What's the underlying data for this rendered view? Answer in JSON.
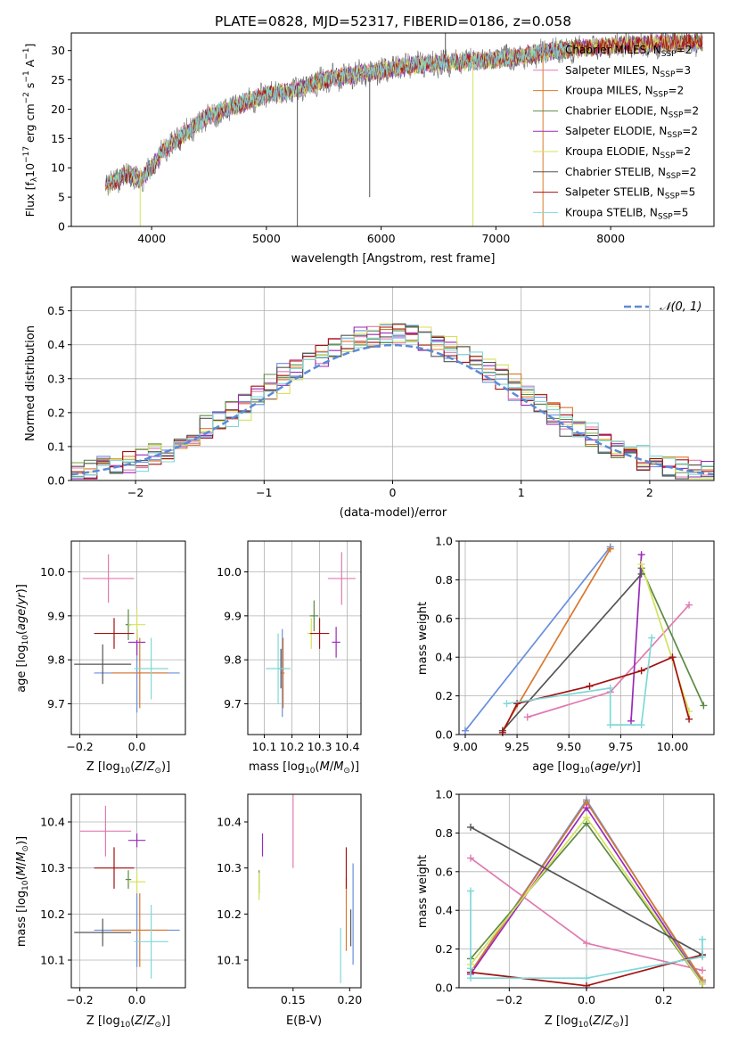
{
  "title": "PLATE=0828, MJD=52317, FIBERID=0186, z=0.058",
  "colors": {
    "Chabrier MILES": "#6a8fdc",
    "Salpeter MILES": "#e07ab0",
    "Kroupa MILES": "#d9782c",
    "Chabrier ELODIE": "#5c8a44",
    "Salpeter ELODIE": "#9a2ab8",
    "Kroupa ELODIE": "#d4e25a",
    "Chabrier STELIB": "#555555",
    "Salpeter STELIB": "#a31212",
    "Kroupa STELIB": "#7fd8d8",
    "normal": "#5b8bd6"
  },
  "chart_data": [
    {
      "id": "spectrum",
      "type": "line",
      "xlabel": "wavelength [Angstrom, rest frame]",
      "ylabel": "Flux [f_λ10^-17 erg cm^-2 s^-1 A^-1]",
      "xlim": [
        3300,
        8900
      ],
      "ylim": [
        0,
        33
      ],
      "xticks": [
        4000,
        5000,
        6000,
        7000,
        8000
      ],
      "yticks": [
        0,
        5,
        10,
        15,
        20,
        25,
        30
      ],
      "grid": false,
      "legend_position": "lower-right",
      "data_range": [
        3600,
        8800
      ],
      "continuum": {
        "x": [
          3600,
          3800,
          3900,
          4000,
          4100,
          4300,
          4500,
          4800,
          5000,
          5200,
          5500,
          5800,
          6000,
          6300,
          6600,
          7000,
          7200,
          7500,
          7800,
          8200,
          8600,
          8800
        ],
        "y": [
          7,
          9,
          8,
          10,
          13,
          16,
          19,
          21,
          22.5,
          23,
          25,
          26,
          26.5,
          27.5,
          28,
          28.5,
          29,
          30,
          30.5,
          31,
          31.3,
          31.5
        ]
      },
      "series": [
        {
          "name": "Chabrier MILES, N_SSP=2",
          "label": "Chabrier MILES, N",
          "sub": "SSP",
          "n": "=2"
        },
        {
          "name": "Salpeter MILES, N_SSP=3",
          "label": "Salpeter MILES, N",
          "sub": "SSP",
          "n": "=3"
        },
        {
          "name": "Kroupa MILES, N_SSP=2",
          "label": "Kroupa MILES, N",
          "sub": "SSP",
          "n": "=2"
        },
        {
          "name": "Chabrier ELODIE, N_SSP=2",
          "label": "Chabrier ELODIE, N",
          "sub": "SSP",
          "n": "=2"
        },
        {
          "name": "Salpeter ELODIE, N_SSP=2",
          "label": "Salpeter ELODIE, N",
          "sub": "SSP",
          "n": "=2"
        },
        {
          "name": "Kroupa ELODIE, N_SSP=2",
          "label": "Kroupa ELODIE, N",
          "sub": "SSP",
          "n": "=2"
        },
        {
          "name": "Chabrier STELIB, N_SSP=2",
          "label": "Chabrier STELIB, N",
          "sub": "SSP",
          "n": "=2"
        },
        {
          "name": "Salpeter STELIB, N_SSP=5",
          "label": "Salpeter STELIB, N",
          "sub": "SSP",
          "n": "=5"
        },
        {
          "name": "Kroupa STELIB, N_SSP=5",
          "label": "Kroupa STELIB, N",
          "sub": "SSP",
          "n": "=5"
        }
      ],
      "spikes": [
        {
          "x": 3900,
          "y0": 0,
          "y1": 10,
          "series": 5
        },
        {
          "x": 5270,
          "y0": 0,
          "y1": 23,
          "series": 6
        },
        {
          "x": 5900,
          "y0": 5,
          "y1": 26,
          "series": 6
        },
        {
          "x": 6560,
          "y0": 28,
          "y1": 33,
          "series": 6
        },
        {
          "x": 6800,
          "y0": 0,
          "y1": 28,
          "series": 5
        },
        {
          "x": 7410,
          "y0": 0,
          "y1": 30,
          "series": 2
        }
      ]
    },
    {
      "id": "residuals",
      "type": "line",
      "xlabel": "(data-model)/error",
      "ylabel": "Normed distribution",
      "xlim": [
        -2.5,
        2.5
      ],
      "ylim": [
        0,
        0.57
      ],
      "xticks": [
        -2,
        -1,
        0,
        1,
        2
      ],
      "xtick_labels": [
        "−2",
        "−1",
        "0",
        "1",
        "2"
      ],
      "yticks": [
        0.0,
        0.1,
        0.2,
        0.3,
        0.4,
        0.5
      ],
      "ytick_labels": [
        "0.0",
        "0.1",
        "0.2",
        "0.3",
        "0.4",
        "0.5"
      ],
      "grid": true,
      "legend_position": "top-right",
      "normal_label": "𝒩(0, 1)",
      "bin_width": 0.1
    },
    {
      "id": "age-vs-Z",
      "type": "scatter",
      "xlabel": "Z [log10(Z/Z⊙)]",
      "ylabel": "age [log10(age/yr)]",
      "xlim": [
        -0.23,
        0.17
      ],
      "ylim": [
        9.63,
        10.07
      ],
      "xticks": [
        -0.2,
        0.0
      ],
      "xtick_labels": [
        "−0.2",
        "0.0"
      ],
      "yticks": [
        9.7,
        9.8,
        9.9,
        10.0
      ],
      "ytick_labels": [
        "9.7",
        "9.8",
        "9.9",
        "10.0"
      ],
      "grid": true,
      "points": [
        {
          "series": 0,
          "x": 0.0,
          "y": 9.77,
          "xerr": 0.15,
          "yerr": 0.09
        },
        {
          "series": 1,
          "x": -0.1,
          "y": 9.985,
          "xerr": 0.09,
          "yerr": 0.055
        },
        {
          "series": 2,
          "x": 0.01,
          "y": 9.77,
          "xerr": 0.1,
          "yerr": 0.08
        },
        {
          "series": 3,
          "x": -0.03,
          "y": 9.88,
          "xerr": 0.01,
          "yerr": 0.035
        },
        {
          "series": 4,
          "x": 0.0,
          "y": 9.84,
          "xerr": 0.03,
          "yerr": 0.03
        },
        {
          "series": 5,
          "x": 0.0,
          "y": 9.88,
          "xerr": 0.03,
          "yerr": 0.035
        },
        {
          "series": 6,
          "x": -0.12,
          "y": 9.79,
          "xerr": 0.1,
          "yerr": 0.045
        },
        {
          "series": 7,
          "x": -0.08,
          "y": 9.86,
          "xerr": 0.07,
          "yerr": 0.035
        },
        {
          "series": 8,
          "x": 0.05,
          "y": 9.78,
          "xerr": 0.06,
          "yerr": 0.07
        }
      ]
    },
    {
      "id": "age-vs-mass",
      "type": "scatter",
      "xlabel": "mass [log10(M/M⊙)]",
      "ylabel": "",
      "xlim": [
        10.04,
        10.45
      ],
      "ylim": [
        9.63,
        10.07
      ],
      "xticks": [
        10.1,
        10.2,
        10.3,
        10.4
      ],
      "xtick_labels": [
        "10.1",
        "10.2",
        "10.3",
        "10.4"
      ],
      "yticks": [
        9.7,
        9.8,
        9.9,
        10.0
      ],
      "ytick_labels": [
        "9.7",
        "9.8",
        "9.9",
        "10.0"
      ],
      "grid": true,
      "points": [
        {
          "series": 0,
          "x": 10.165,
          "y": 9.77,
          "xerr": 0.005,
          "yerr": 0.1
        },
        {
          "series": 1,
          "x": 10.38,
          "y": 9.985,
          "xerr": 0.05,
          "yerr": 0.06
        },
        {
          "series": 2,
          "x": 10.168,
          "y": 9.77,
          "xerr": 0.005,
          "yerr": 0.08
        },
        {
          "series": 3,
          "x": 10.28,
          "y": 9.9,
          "xerr": 0.015,
          "yerr": 0.035
        },
        {
          "series": 4,
          "x": 10.36,
          "y": 9.84,
          "xerr": 0.015,
          "yerr": 0.035
        },
        {
          "series": 5,
          "x": 10.27,
          "y": 9.86,
          "xerr": 0.015,
          "yerr": 0.035
        },
        {
          "series": 6,
          "x": 10.16,
          "y": 9.78,
          "xerr": 0.01,
          "yerr": 0.045
        },
        {
          "series": 7,
          "x": 10.3,
          "y": 9.86,
          "xerr": 0.035,
          "yerr": 0.035
        },
        {
          "series": 8,
          "x": 10.15,
          "y": 9.78,
          "xerr": 0.045,
          "yerr": 0.08
        }
      ]
    },
    {
      "id": "weight-vs-age",
      "type": "line",
      "xlabel": "age [log10(age/yr)]",
      "ylabel": "mass weight",
      "xlim": [
        8.97,
        10.2
      ],
      "ylim": [
        0,
        1
      ],
      "xticks": [
        9.0,
        9.25,
        9.5,
        9.75,
        10.0
      ],
      "xtick_labels": [
        "9.00",
        "9.25",
        "9.50",
        "9.75",
        "10.00"
      ],
      "yticks": [
        0,
        0.2,
        0.4,
        0.6,
        0.8,
        1.0
      ],
      "ytick_labels": [
        "0.0",
        "0.2",
        "0.4",
        "0.6",
        "0.8",
        "1.0"
      ],
      "grid": true,
      "series": [
        {
          "series": 0,
          "x": [
            9.0,
            9.7
          ],
          "y": [
            0.02,
            0.97
          ]
        },
        {
          "series": 1,
          "x": [
            9.3,
            9.7,
            10.08
          ],
          "y": [
            0.09,
            0.22,
            0.67
          ]
        },
        {
          "series": 2,
          "x": [
            9.18,
            9.7
          ],
          "y": [
            0.02,
            0.96
          ]
        },
        {
          "series": 3,
          "x": [
            9.85,
            10.15
          ],
          "y": [
            0.86,
            0.15
          ]
        },
        {
          "series": 4,
          "x": [
            9.8,
            9.85
          ],
          "y": [
            0.07,
            0.93
          ]
        },
        {
          "series": 5,
          "x": [
            9.85,
            10.08
          ],
          "y": [
            0.88,
            0.12
          ]
        },
        {
          "series": 6,
          "x": [
            9.18,
            9.85
          ],
          "y": [
            0.02,
            0.83
          ]
        },
        {
          "series": 7,
          "x": [
            9.18,
            9.25,
            9.6,
            9.85,
            10.0,
            10.08
          ],
          "y": [
            0.01,
            0.16,
            0.25,
            0.33,
            0.4,
            0.08
          ]
        },
        {
          "series": 8,
          "x": [
            9.2,
            9.7,
            9.7,
            9.85,
            9.9
          ],
          "y": [
            0.16,
            0.24,
            0.05,
            0.05,
            0.5
          ]
        }
      ]
    },
    {
      "id": "mass-vs-Z",
      "type": "scatter",
      "xlabel": "Z [log10(Z/Z⊙)]",
      "ylabel": "mass [log10(M/M⊙)]",
      "xlim": [
        -0.23,
        0.17
      ],
      "ylim": [
        10.04,
        10.46
      ],
      "xticks": [
        -0.2,
        0.0
      ],
      "xtick_labels": [
        "−0.2",
        "0.0"
      ],
      "yticks": [
        10.1,
        10.2,
        10.3,
        10.4
      ],
      "ytick_labels": [
        "10.1",
        "10.2",
        "10.3",
        "10.4"
      ],
      "grid": true,
      "points": [
        {
          "series": 0,
          "x": 0.0,
          "y": 10.165,
          "xerr": 0.15,
          "yerr": 0.08
        },
        {
          "series": 1,
          "x": -0.11,
          "y": 10.38,
          "xerr": 0.09,
          "yerr": 0.055
        },
        {
          "series": 2,
          "x": 0.01,
          "y": 10.165,
          "xerr": 0.1,
          "yerr": 0.08
        },
        {
          "series": 3,
          "x": -0.03,
          "y": 10.275,
          "xerr": 0.01,
          "yerr": 0.02
        },
        {
          "series": 4,
          "x": 0.0,
          "y": 10.36,
          "xerr": 0.03,
          "yerr": 0.015
        },
        {
          "series": 5,
          "x": 0.0,
          "y": 10.27,
          "xerr": 0.03,
          "yerr": 0.025
        },
        {
          "series": 6,
          "x": -0.12,
          "y": 10.16,
          "xerr": 0.1,
          "yerr": 0.03
        },
        {
          "series": 7,
          "x": -0.08,
          "y": 10.3,
          "xerr": 0.07,
          "yerr": 0.045
        },
        {
          "series": 8,
          "x": 0.05,
          "y": 10.14,
          "xerr": 0.06,
          "yerr": 0.08
        }
      ]
    },
    {
      "id": "mass-vs-EBV",
      "type": "scatter",
      "xlabel": "E(B-V)",
      "ylabel": "",
      "xlim": [
        0.11,
        0.21
      ],
      "ylim": [
        10.04,
        10.46
      ],
      "xticks": [
        0.15,
        0.2
      ],
      "xtick_labels": [
        "0.15",
        "0.20"
      ],
      "yticks": [
        10.1,
        10.2,
        10.3,
        10.4
      ],
      "ytick_labels": [
        "10.1",
        "10.2",
        "10.3",
        "10.4"
      ],
      "grid": false,
      "points": [
        {
          "series": 0,
          "x": 0.203,
          "y": 10.2,
          "xerr": 0,
          "yerr": 0.11
        },
        {
          "series": 1,
          "x": 0.15,
          "y": 10.38,
          "xerr": 0,
          "yerr": 0.08
        },
        {
          "series": 2,
          "x": 0.197,
          "y": 10.2,
          "xerr": 0,
          "yerr": 0.08
        },
        {
          "series": 3,
          "x": 0.12,
          "y": 10.27,
          "xerr": 0,
          "yerr": 0.025
        },
        {
          "series": 4,
          "x": 0.123,
          "y": 10.35,
          "xerr": 0,
          "yerr": 0.025
        },
        {
          "series": 5,
          "x": 0.12,
          "y": 10.26,
          "xerr": 0,
          "yerr": 0.03
        },
        {
          "series": 6,
          "x": 0.201,
          "y": 10.17,
          "xerr": 0,
          "yerr": 0.04
        },
        {
          "series": 7,
          "x": 0.197,
          "y": 10.3,
          "xerr": 0,
          "yerr": 0.045
        },
        {
          "series": 8,
          "x": 0.192,
          "y": 10.11,
          "xerr": 0,
          "yerr": 0.06
        }
      ]
    },
    {
      "id": "weight-vs-Z",
      "type": "line",
      "xlabel": "Z [log10(Z/Z⊙)]",
      "ylabel": "mass weight",
      "xlim": [
        -0.33,
        0.33
      ],
      "ylim": [
        0,
        1
      ],
      "xticks": [
        -0.2,
        0.0,
        0.2
      ],
      "xtick_labels": [
        "−0.2",
        "0.0",
        "0.2"
      ],
      "yticks": [
        0,
        0.2,
        0.4,
        0.6,
        0.8,
        1.0
      ],
      "ytick_labels": [
        "0.0",
        "0.2",
        "0.4",
        "0.6",
        "0.8",
        "1.0"
      ],
      "grid": true,
      "series": [
        {
          "series": 0,
          "x": [
            -0.3,
            0.0,
            0.3
          ],
          "y": [
            0.08,
            0.97,
            0.03
          ]
        },
        {
          "series": 1,
          "x": [
            -0.3,
            0.0,
            0.3
          ],
          "y": [
            0.67,
            0.23,
            0.09
          ]
        },
        {
          "series": 2,
          "x": [
            -0.3,
            0.0,
            0.3
          ],
          "y": [
            0.08,
            0.96,
            0.04
          ]
        },
        {
          "series": 3,
          "x": [
            -0.3,
            0.0,
            0.3
          ],
          "y": [
            0.15,
            0.85,
            0.02
          ]
        },
        {
          "series": 4,
          "x": [
            -0.3,
            0.0,
            0.3
          ],
          "y": [
            0.07,
            0.93,
            0.02
          ]
        },
        {
          "series": 5,
          "x": [
            -0.3,
            0.0,
            0.3
          ],
          "y": [
            0.12,
            0.88,
            0.02
          ]
        },
        {
          "series": 6,
          "x": [
            -0.3,
            0.3
          ],
          "y": [
            0.83,
            0.17
          ]
        },
        {
          "series": 7,
          "x": [
            -0.3,
            0.0,
            0.3
          ],
          "y": [
            0.08,
            0.01,
            0.17
          ]
        },
        {
          "series": 8,
          "x": [
            -0.3,
            -0.3,
            -0.3,
            0.0,
            0.3,
            0.3
          ],
          "y": [
            0.5,
            0.1,
            0.05,
            0.05,
            0.16,
            0.25
          ]
        }
      ]
    }
  ]
}
